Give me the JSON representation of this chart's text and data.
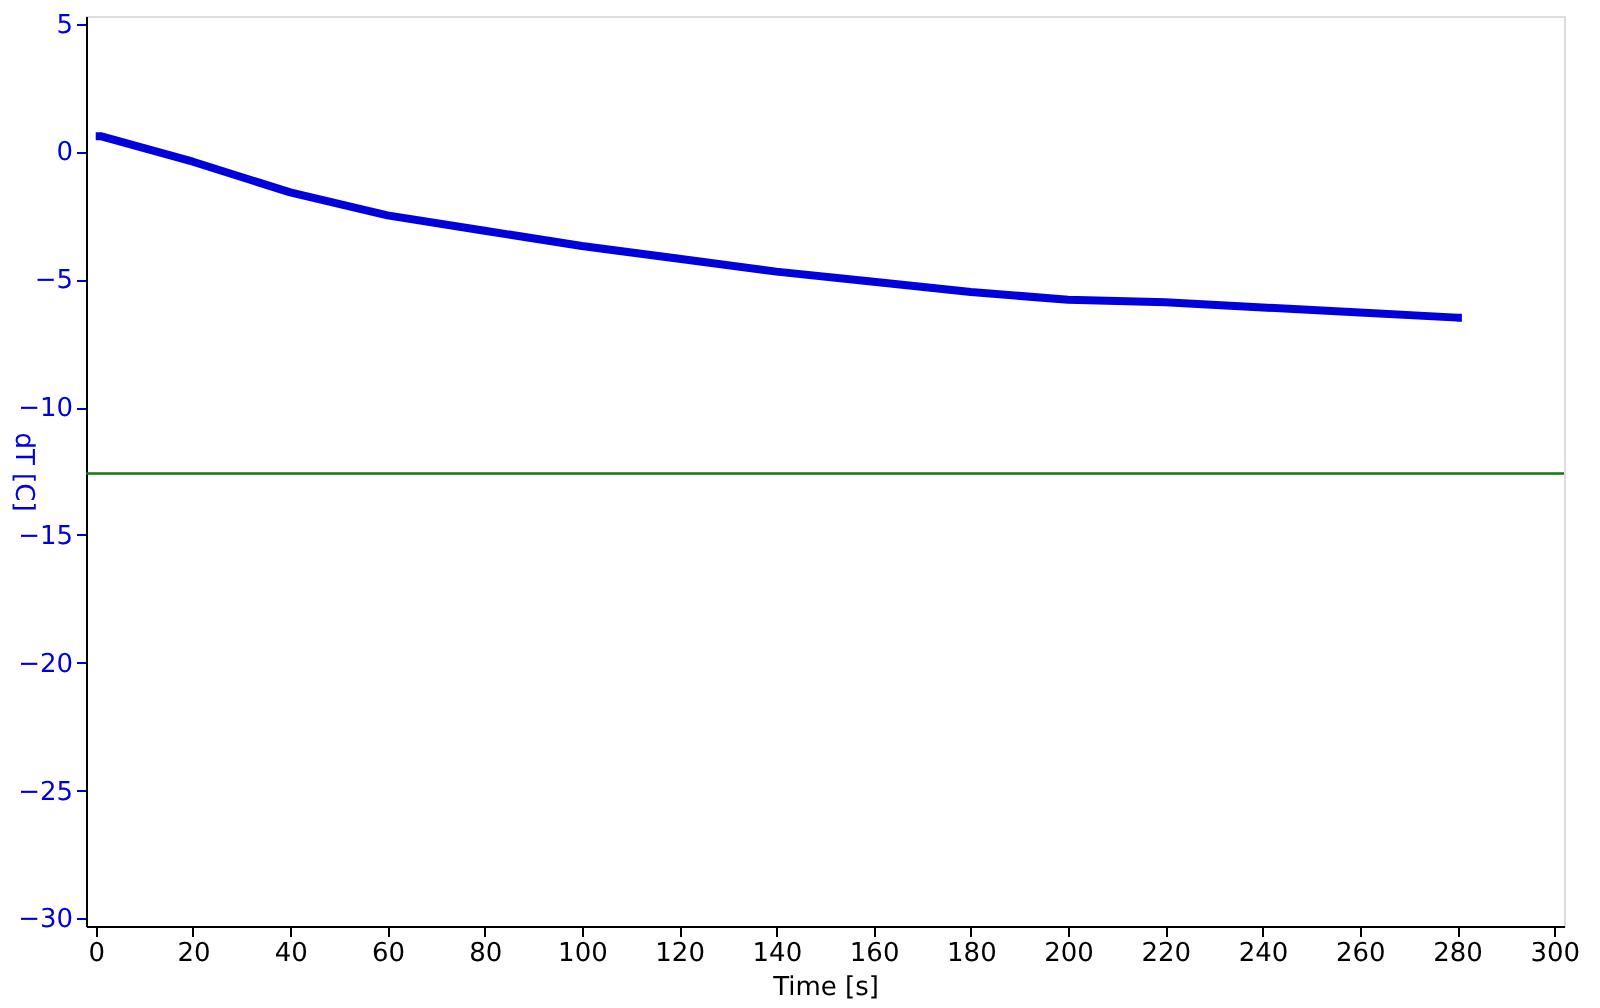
{
  "chart_data": {
    "type": "line",
    "xlabel": "Time [s]",
    "ylabel": "dT [C]",
    "x": [
      0,
      1,
      20,
      40,
      60,
      80,
      100,
      120,
      140,
      160,
      180,
      200,
      220,
      240,
      260,
      280,
      281
    ],
    "series": [
      {
        "color": "#0000dd",
        "values": [
          0.6,
          0.6,
          -0.4,
          -1.6,
          -2.5,
          -3.1,
          -3.7,
          -4.2,
          -4.7,
          -5.1,
          -5.5,
          -5.8,
          -5.9,
          -6.1,
          -6.3,
          -6.5,
          -6.5
        ]
      }
    ],
    "xlim": [
      -2,
      302
    ],
    "ylim": [
      -30.3,
      5.3
    ],
    "xticks": [
      0,
      20,
      40,
      60,
      80,
      100,
      120,
      140,
      160,
      180,
      200,
      220,
      240,
      260,
      280,
      300
    ],
    "yticks": [
      -30,
      -25,
      -20,
      -15,
      -10,
      -5,
      0,
      5
    ],
    "ref_lines": [
      {
        "axis": "y",
        "value": -12.6,
        "color": "#117711",
        "line_style": "solid"
      }
    ],
    "grid": false,
    "marker": "none",
    "line_style": "solid"
  }
}
